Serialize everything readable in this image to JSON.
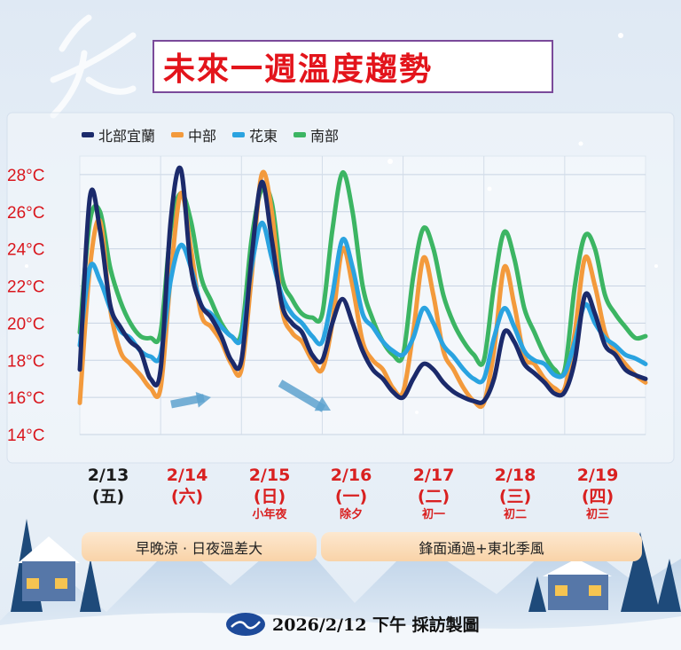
{
  "title": "未來一週溫度趨勢",
  "footer": "2026/2/12 下午 採訪製圖",
  "banners": [
    "早晚涼 · 日夜溫差大",
    "鋒面通過+東北季風"
  ],
  "dates": [
    {
      "date": "2/13",
      "weekday": "(五)",
      "note": "",
      "color": "#1a1a1a"
    },
    {
      "date": "2/14",
      "weekday": "(六)",
      "note": "",
      "color": "#d92020"
    },
    {
      "date": "2/15",
      "weekday": "(日)",
      "note": "小年夜",
      "color": "#d92020"
    },
    {
      "date": "2/16",
      "weekday": "(一)",
      "note": "除夕",
      "color": "#d92020"
    },
    {
      "date": "2/17",
      "weekday": "(二)",
      "note": "初一",
      "color": "#d92020"
    },
    {
      "date": "2/18",
      "weekday": "(三)",
      "note": "初二",
      "color": "#d92020"
    },
    {
      "date": "2/19",
      "weekday": "(四)",
      "note": "初三",
      "color": "#d92020"
    }
  ],
  "chart_data": {
    "type": "line",
    "title": "未來一週溫度趨勢",
    "ylabel": "",
    "xlabel": "",
    "ylim": [
      14,
      29
    ],
    "yticks": [
      14,
      16,
      18,
      20,
      22,
      24,
      26,
      28
    ],
    "ytick_labels": [
      "14°C",
      "16°C",
      "18°C",
      "20°C",
      "22°C",
      "24°C",
      "26°C",
      "28°C"
    ],
    "x": [
      "2/13 00",
      "03",
      "06",
      "09",
      "12",
      "15",
      "18",
      "21",
      "2/14 00",
      "03",
      "06",
      "09",
      "12",
      "15",
      "18",
      "21",
      "2/15 00",
      "03",
      "06",
      "09",
      "12",
      "15",
      "18",
      "21",
      "2/16 00",
      "03",
      "06",
      "09",
      "12",
      "15",
      "18",
      "21",
      "2/17 00",
      "03",
      "06",
      "09",
      "12",
      "15",
      "18",
      "21",
      "2/18 00",
      "03",
      "06",
      "09",
      "12",
      "15",
      "18",
      "21",
      "2/19 00",
      "03",
      "06",
      "09",
      "12",
      "15",
      "18",
      "21",
      "2/20 00"
    ],
    "grid": true,
    "legend_position": "top-left",
    "series": [
      {
        "name": "北部宜蘭",
        "color": "#1b2a6b",
        "values": [
          17.5,
          26.8,
          25,
          21,
          19.8,
          19,
          18.5,
          17,
          17.5,
          25.5,
          28.3,
          23,
          21,
          20.3,
          19.3,
          18,
          18,
          23.5,
          27.6,
          24.5,
          21,
          20,
          19.5,
          18.3,
          18,
          20,
          21.3,
          20,
          18.5,
          17.5,
          17,
          16.3,
          16,
          17,
          17.8,
          17.5,
          16.8,
          16.3,
          16,
          15.8,
          15.8,
          17,
          19.5,
          19,
          17.8,
          17.3,
          16.8,
          16.2,
          16.3,
          18,
          21.5,
          20.5,
          18.8,
          18.3,
          17.5,
          17.2,
          17
        ]
      },
      {
        "name": "中部",
        "color": "#f39a3c",
        "values": [
          15.7,
          23,
          25.5,
          20.8,
          18.5,
          17.8,
          17.2,
          16.5,
          16.5,
          22.5,
          27,
          24,
          20.5,
          19.8,
          19,
          17.8,
          17.5,
          22.5,
          28,
          26,
          20.8,
          19.5,
          19,
          18,
          17.5,
          20,
          24,
          22,
          19,
          18,
          17.5,
          16.5,
          16.3,
          19.5,
          23.5,
          21.5,
          18.5,
          17.5,
          16.5,
          15.8,
          15.7,
          18.5,
          23,
          21,
          18.2,
          17.8,
          17,
          16.5,
          16.5,
          19.5,
          23.5,
          22,
          19.5,
          18.5,
          17.8,
          17.2,
          16.8
        ]
      },
      {
        "name": "花東",
        "color": "#2aa3e0",
        "values": [
          18.8,
          23,
          22.3,
          20.8,
          19.6,
          19.2,
          18.5,
          18.2,
          18.3,
          22.3,
          24.2,
          23,
          21,
          20.5,
          19.8,
          19.3,
          19.2,
          23,
          25.4,
          23.5,
          21.5,
          20.5,
          20,
          19.3,
          19,
          21.5,
          24.5,
          23,
          20.5,
          19.8,
          19,
          18.5,
          18.3,
          19.2,
          20.8,
          20,
          18.8,
          18.2,
          17.5,
          17,
          17,
          19.2,
          20.8,
          19.8,
          18.5,
          18,
          17.8,
          17.2,
          17.3,
          19,
          21,
          20,
          19.2,
          18.8,
          18.3,
          18.1,
          17.8
        ]
      },
      {
        "name": "南部",
        "color": "#3cb563",
        "values": [
          19.5,
          25.5,
          26,
          23,
          21.2,
          20,
          19.3,
          19.2,
          19.5,
          25,
          27,
          25.5,
          22.5,
          21.2,
          20,
          19.3,
          19.5,
          24.5,
          27.2,
          26.5,
          22.5,
          21.3,
          20.5,
          20.3,
          20.5,
          25,
          28.1,
          26,
          22,
          20.2,
          19,
          18.3,
          18.3,
          22.5,
          25.1,
          24,
          21.5,
          20,
          19,
          18.3,
          18,
          22,
          24.9,
          23.5,
          20.8,
          19.5,
          18.3,
          17.5,
          17.5,
          22,
          24.7,
          24,
          21.5,
          20.5,
          19.8,
          19.2,
          19.3
        ]
      }
    ]
  }
}
